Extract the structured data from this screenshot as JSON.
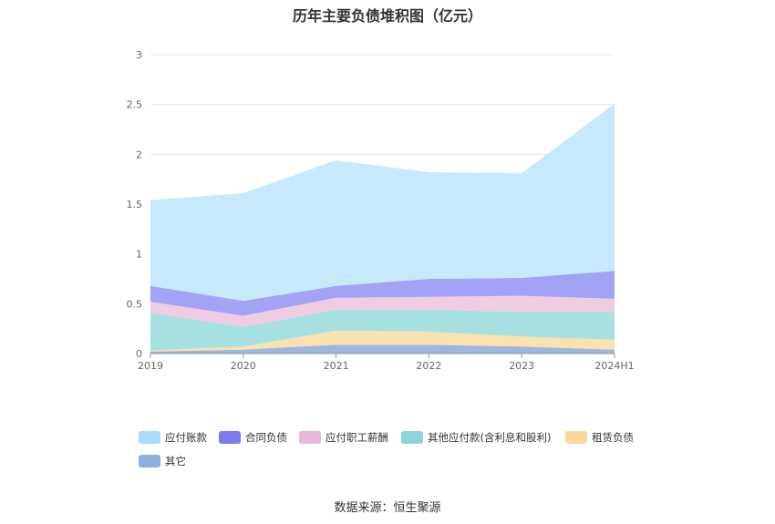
{
  "title": "历年主要负债堆积图（亿元）",
  "source": "数据来源：恒生聚源",
  "chart_data": {
    "type": "area",
    "stacked": true,
    "categories": [
      "2019",
      "2020",
      "2021",
      "2022",
      "2023",
      "2024H1"
    ],
    "y_ticks": [
      "0",
      "0.5",
      "1",
      "1.5",
      "2",
      "2.5",
      "3"
    ],
    "ylim": [
      0,
      3
    ],
    "grid": true,
    "legend_position": "bottom",
    "series": [
      {
        "name": "其它",
        "color": "#9db8e0",
        "values": [
          0.02,
          0.04,
          0.09,
          0.09,
          0.07,
          0.04
        ]
      },
      {
        "name": "租赁负债",
        "color": "#fbe0b0",
        "values": [
          0.01,
          0.03,
          0.14,
          0.13,
          0.1,
          0.1
        ]
      },
      {
        "name": "其他应付款(含利息和股利)",
        "color": "#a6e0e0",
        "values": [
          0.38,
          0.2,
          0.21,
          0.22,
          0.25,
          0.28
        ]
      },
      {
        "name": "应付职工薪酬",
        "color": "#f0cce2",
        "values": [
          0.11,
          0.11,
          0.12,
          0.13,
          0.16,
          0.13
        ]
      },
      {
        "name": "合同负债",
        "color": "#a3a3f5",
        "values": [
          0.16,
          0.15,
          0.12,
          0.18,
          0.18,
          0.28
        ]
      },
      {
        "name": "应付账款",
        "color": "#c6e9fb",
        "values": [
          0.86,
          1.08,
          1.26,
          1.07,
          1.05,
          1.68
        ]
      }
    ]
  },
  "legend": [
    {
      "label": "应付账款",
      "color": "#a8dcf8"
    },
    {
      "label": "合同负债",
      "color": "#7b7bef"
    },
    {
      "label": "应付职工薪酬",
      "color": "#e8b8d8"
    },
    {
      "label": "其他应付款(含利息和股利)",
      "color": "#8cd6d6"
    },
    {
      "label": "租赁负债",
      "color": "#fbd89e"
    },
    {
      "label": "其它",
      "color": "#8fb0dc"
    }
  ]
}
